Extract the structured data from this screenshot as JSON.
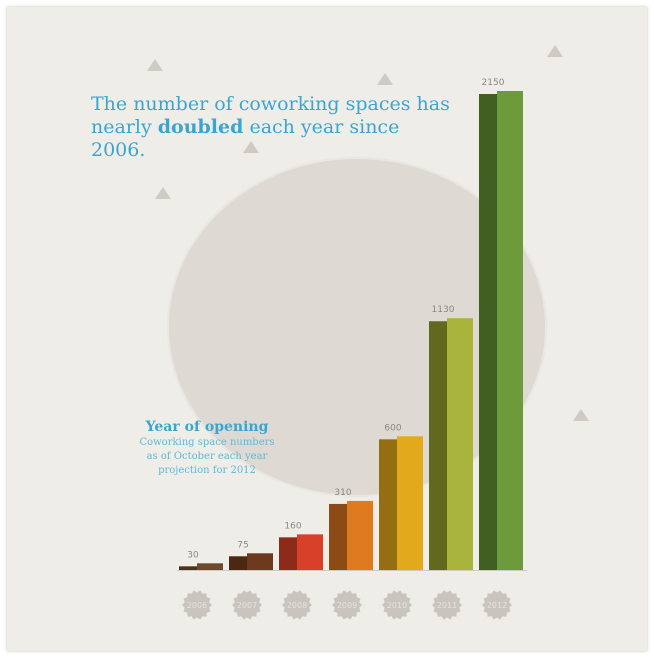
{
  "title": {
    "before": "The number of coworking spaces has nearly ",
    "emphasis": "doubled",
    "after": " each year since 2006."
  },
  "legend": {
    "heading": "Year of opening",
    "note_line1": "Coworking space numbers",
    "note_line2": "as of October each year",
    "note_line3": "projection for 2012"
  },
  "colors": {
    "background": "#efede8",
    "title": "#3aa6cf",
    "badge": "#c9c5be"
  },
  "chart_data": {
    "type": "bar",
    "categories": [
      "2006",
      "2007",
      "2008",
      "2009",
      "2010",
      "2011",
      "2012"
    ],
    "values": [
      30,
      75,
      160,
      310,
      600,
      1130,
      2150
    ],
    "value_labels": [
      "30",
      "75",
      "160",
      "310",
      "600",
      "1130",
      "2150"
    ],
    "bar_colors_front": [
      "#6b4a2e",
      "#6b3a1e",
      "#d9402a",
      "#e07a1e",
      "#e3a91c",
      "#a8b43c",
      "#6d9a3a"
    ],
    "bar_colors_side": [
      "#4b3220",
      "#4a2812",
      "#8b2a18",
      "#8c4a14",
      "#956e12",
      "#5f6a1f",
      "#3f5e20"
    ],
    "ylim": [
      0,
      2200
    ],
    "xlabel": "",
    "ylabel": "",
    "grid": false,
    "legend_position": "left"
  }
}
